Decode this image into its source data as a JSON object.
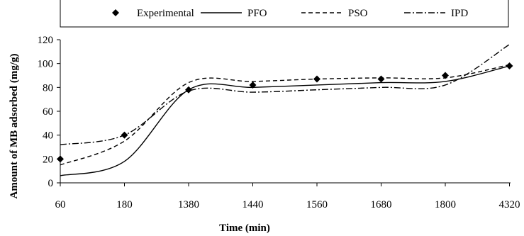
{
  "chart_data": {
    "type": "line",
    "title": "",
    "xlabel": "Time (min)",
    "ylabel": "Amount of MB adsorbed (mg/g)",
    "categories": [
      "60",
      "180",
      "1380",
      "1440",
      "1560",
      "1680",
      "1800",
      "4320"
    ],
    "ylim": [
      0,
      120
    ],
    "yticks": [
      0,
      20,
      40,
      60,
      80,
      100,
      120
    ],
    "legend_position": "top",
    "grid": false,
    "series": [
      {
        "name": "Experimental",
        "style": "diamond-markers",
        "color": "#000000",
        "values": [
          20,
          40,
          78,
          82,
          87,
          87,
          90,
          98
        ]
      },
      {
        "name": "PFO",
        "style": "solid",
        "color": "#000000",
        "values": [
          6,
          18,
          78,
          80,
          82,
          84,
          85,
          98
        ]
      },
      {
        "name": "PSO",
        "style": "dashed",
        "color": "#000000",
        "values": [
          15,
          35,
          84,
          85,
          87,
          88,
          88,
          99
        ]
      },
      {
        "name": "IPD",
        "style": "dash-dot",
        "color": "#000000",
        "values": [
          32,
          40,
          77,
          76,
          78,
          80,
          82,
          116
        ]
      }
    ]
  }
}
